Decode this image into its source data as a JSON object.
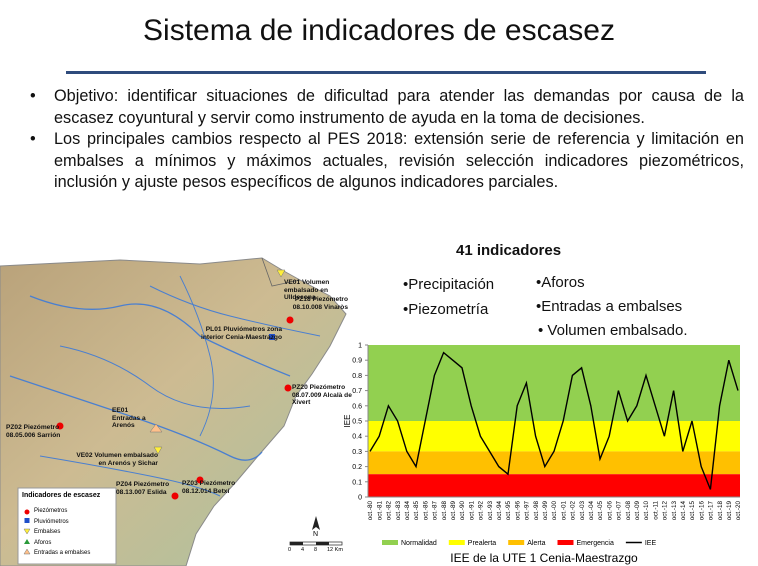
{
  "title": "Sistema de indicadores de escasez",
  "bullets": [
    "Objetivo: identificar situaciones de dificultad para atender las demandas por causa de la escasez coyuntural y servir como instrumento de ayuda en la toma de decisiones.",
    "Los principales cambios respecto al PES 2018: extensión serie de referencia y limitación en embalses a mínimos y máximos actuales, revisión selección indicadores piezométricos, inclusión y ajuste pesos específicos de algunos indicadores parciales."
  ],
  "indicators": {
    "heading": "41 indicadores",
    "col1": [
      "•Precipitación",
      "•Piezometría"
    ],
    "col2": [
      "•Aforos",
      "•Entradas a embalses",
      "• Volumen embalsado."
    ]
  },
  "map": {
    "labels": [
      "VE01 Volumen embalsado en Ulldecona",
      "PZ18 Piezómetro 08.10.008 Vinaròs",
      "PL01 Pluviómetros zona interior Cenia-Maestrazgo",
      "PZ20 Piezómetro 08.07.009 Alcalà de Xivert",
      "EE01 Entradas a Arenós",
      "PZ02 Piezómetro 08.05.006 Sarrión",
      "VE02 Volumen embalsado en Arenós y Sichar",
      "PZ04 Piezómetro 08.13.007 Eslida",
      "PZ03 Piezómetro 08.12.014 Betxí"
    ],
    "legend": {
      "title": "Indicadores de escasez",
      "items": [
        "Piezómetros",
        "Pluviómetros",
        "Embalses",
        "Aforos",
        "Entradas a embalses"
      ]
    },
    "north": "N",
    "scale": [
      "0",
      "4",
      "8",
      "12 Km"
    ]
  },
  "chart_data": {
    "type": "line",
    "ylabel": "IEE",
    "caption": "IEE de la UTE 1 Cenia-Maestrazgo",
    "categories": [
      "oct.-80",
      "oct.-81",
      "oct.-82",
      "oct.-83",
      "oct.-84",
      "oct.-85",
      "oct.-86",
      "oct.-87",
      "oct.-88",
      "oct.-89",
      "oct.-90",
      "oct.-91",
      "oct.-92",
      "oct.-93",
      "oct.-94",
      "oct.-95",
      "oct.-96",
      "oct.-97",
      "oct.-98",
      "oct.-99",
      "oct.-00",
      "oct.-01",
      "oct.-02",
      "oct.-03",
      "oct.-04",
      "oct.-05",
      "oct.-06",
      "oct.-07",
      "oct.-08",
      "oct.-09",
      "oct.-10",
      "oct.-11",
      "oct.-12",
      "oct.-13",
      "oct.-14",
      "oct.-15",
      "oct.-16",
      "oct.-17",
      "oct.-18",
      "oct.-19",
      "oct.-20"
    ],
    "series": [
      {
        "name": "IEE",
        "color": "#000000",
        "values": [
          0.3,
          0.4,
          0.6,
          0.5,
          0.3,
          0.2,
          0.5,
          0.8,
          0.95,
          0.9,
          0.85,
          0.6,
          0.4,
          0.3,
          0.2,
          0.15,
          0.6,
          0.75,
          0.4,
          0.2,
          0.3,
          0.5,
          0.8,
          0.85,
          0.6,
          0.25,
          0.4,
          0.7,
          0.5,
          0.6,
          0.8,
          0.6,
          0.4,
          0.7,
          0.3,
          0.5,
          0.2,
          0.05,
          0.6,
          0.9,
          0.7
        ]
      }
    ],
    "bands": [
      {
        "name": "Normalidad",
        "color": "#92d050",
        "from": 0.5,
        "to": 1
      },
      {
        "name": "Prealerta",
        "color": "#ffff00",
        "from": 0.3,
        "to": 0.5
      },
      {
        "name": "Alerta",
        "color": "#ffc000",
        "from": 0.15,
        "to": 0.3
      },
      {
        "name": "Emergencia",
        "color": "#ff0000",
        "from": 0,
        "to": 0.15
      }
    ],
    "ylim": [
      0,
      1
    ],
    "yticks": [
      0,
      0.1,
      0.2,
      0.3,
      0.4,
      0.5,
      0.6,
      0.7,
      0.8,
      0.9,
      1
    ]
  }
}
